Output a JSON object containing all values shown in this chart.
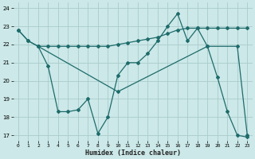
{
  "background_color": "#cce8e8",
  "grid_color": "#aacccc",
  "line_color": "#1e6b6b",
  "xlabel": "Humidex (Indice chaleur)",
  "xlim": [
    -0.5,
    23.5
  ],
  "ylim": [
    16.7,
    24.3
  ],
  "yticks": [
    17,
    18,
    19,
    20,
    21,
    22,
    23,
    24
  ],
  "xticks": [
    0,
    1,
    2,
    3,
    4,
    5,
    6,
    7,
    8,
    9,
    10,
    11,
    12,
    13,
    14,
    15,
    16,
    17,
    18,
    19,
    20,
    21,
    22,
    23
  ],
  "line1_x": [
    0,
    1,
    2,
    3,
    4,
    5,
    6,
    7,
    8,
    9,
    10,
    11,
    12,
    13,
    14,
    15,
    16,
    17,
    18,
    19,
    20,
    21,
    22,
    23
  ],
  "line1_y": [
    22.8,
    22.2,
    21.9,
    21.9,
    21.9,
    21.9,
    21.9,
    21.9,
    21.9,
    21.9,
    22.0,
    22.1,
    22.2,
    22.3,
    22.4,
    22.6,
    22.8,
    22.9,
    22.9,
    22.9,
    22.9,
    22.9,
    22.9,
    22.9
  ],
  "line2_x": [
    0,
    1,
    2,
    3,
    4,
    5,
    6,
    7,
    8,
    9,
    10,
    11,
    12,
    13,
    14,
    15,
    16,
    17,
    18,
    19,
    20,
    21,
    22,
    23
  ],
  "line2_y": [
    22.8,
    22.2,
    21.9,
    20.8,
    18.3,
    18.3,
    18.4,
    19.0,
    17.1,
    18.0,
    20.3,
    21.0,
    21.0,
    21.5,
    22.2,
    23.0,
    23.7,
    22.2,
    22.9,
    21.9,
    20.2,
    18.3,
    17.0,
    16.9
  ],
  "line3_x": [
    2,
    10,
    19,
    22,
    23
  ],
  "line3_y": [
    21.9,
    19.4,
    21.9,
    21.9,
    17.0
  ]
}
